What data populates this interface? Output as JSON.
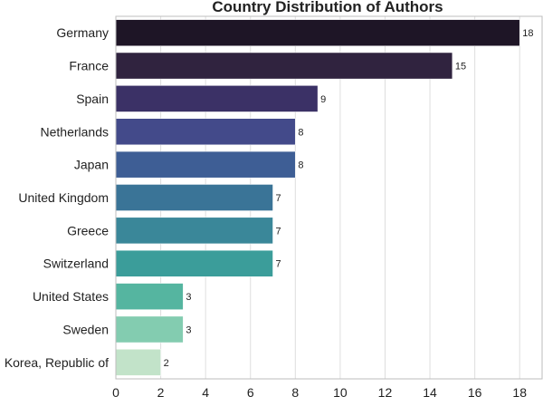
{
  "chart_data": {
    "type": "bar",
    "orientation": "horizontal",
    "title": "Country Distribution of Authors",
    "xlabel": "",
    "ylabel": "",
    "categories": [
      "Germany",
      "France",
      "Spain",
      "Netherlands",
      "Japan",
      "United Kingdom",
      "Greece",
      "Switzerland",
      "United States",
      "Sweden",
      "Korea, Republic of"
    ],
    "values": [
      18,
      15,
      9,
      8,
      8,
      7,
      7,
      7,
      3,
      3,
      2
    ],
    "value_labels": [
      "18",
      "15",
      "9",
      "8",
      "8",
      "7",
      "7",
      "7",
      "3",
      "3",
      "2"
    ],
    "colors": [
      "#1e1526",
      "#30233f",
      "#3b3166",
      "#434a8a",
      "#3e5e95",
      "#3a7497",
      "#3a8799",
      "#3b9d9a",
      "#55b5a0",
      "#83ccb0",
      "#c2e3c9"
    ],
    "xlim": [
      0,
      19
    ],
    "xticks": [
      0,
      2,
      4,
      6,
      8,
      10,
      12,
      14,
      16,
      18
    ],
    "grid": true,
    "legend": "none"
  }
}
